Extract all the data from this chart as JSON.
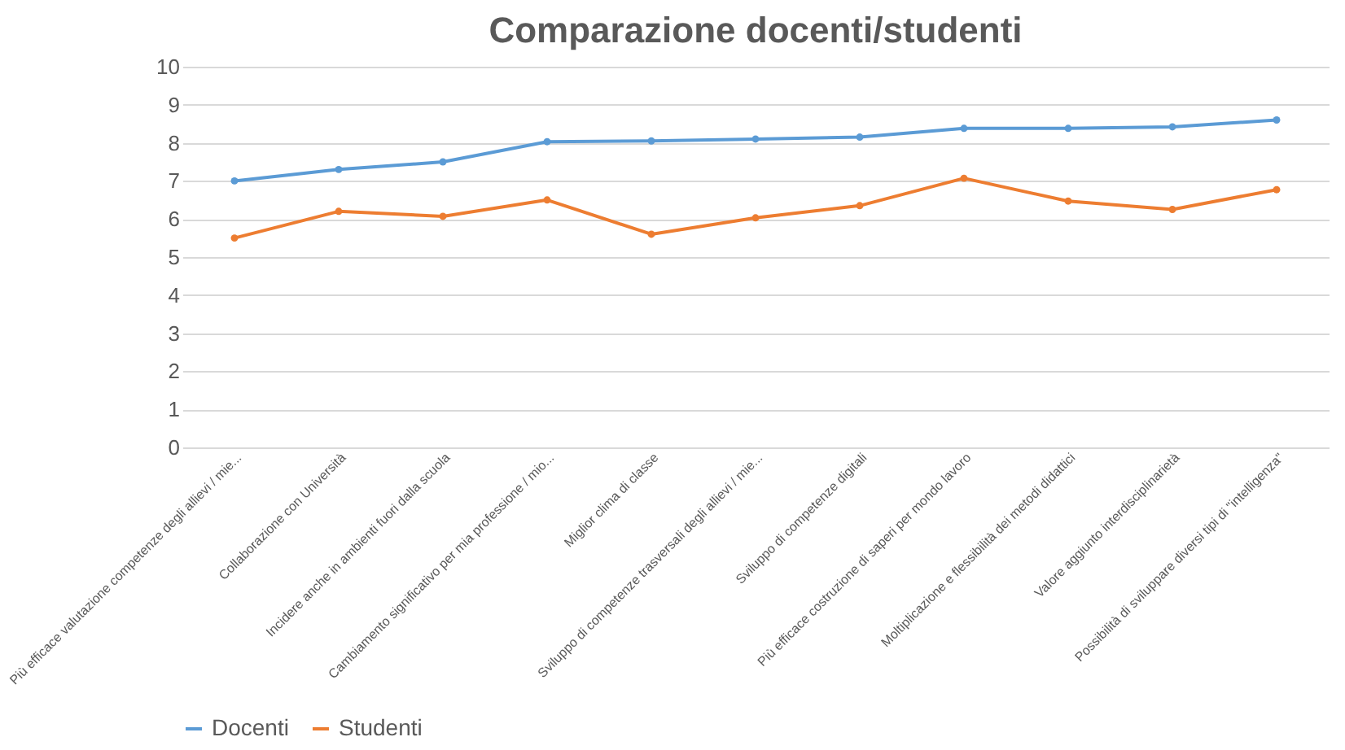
{
  "chart_data": {
    "type": "line",
    "title": "Comparazione docenti/studenti",
    "categories": [
      "Più efficace valutazione competenze degli allievi / mie...",
      "Collaborazione con Università",
      "Incidere anche in ambienti fuori dalla scuola",
      "Cambiamento significativo per mia professione / mio...",
      "Miglior clima di classe",
      "Sviluppo di competenze trasversali degli allievi / mie...",
      "Sviluppo di competenze digitali",
      "Più efficace costruzione di saperi per mondo lavoro",
      "Moltiplicazione e flessibilità dei metodi didattici",
      "Valore aggiunto interdisciplinarietà",
      "Possibilità di sviluppare diversi tipi di \"intelligenza\""
    ],
    "series": [
      {
        "name": "Docenti",
        "color": "#5b9bd5",
        "values": [
          7.0,
          7.3,
          7.5,
          8.03,
          8.05,
          8.1,
          8.15,
          8.38,
          8.38,
          8.42,
          8.6
        ]
      },
      {
        "name": "Studenti",
        "color": "#ed7d31",
        "values": [
          5.5,
          6.2,
          6.07,
          6.5,
          5.6,
          6.03,
          6.35,
          7.07,
          6.47,
          6.25,
          6.77
        ]
      }
    ],
    "ylim": [
      0,
      10
    ],
    "yticks": [
      0,
      1,
      2,
      3,
      4,
      5,
      6,
      7,
      8,
      9,
      10
    ],
    "grid": "y",
    "legend": "bottom",
    "marker": "circle",
    "line_style": "solid"
  }
}
